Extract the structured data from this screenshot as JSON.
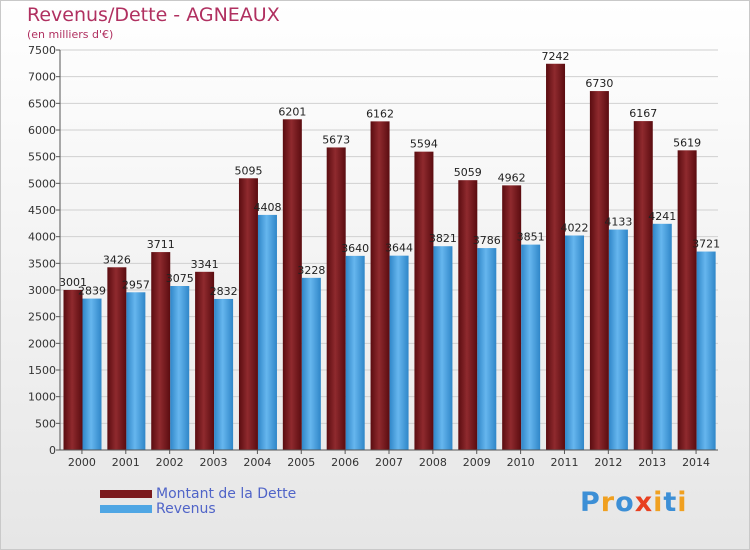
{
  "header": {
    "title": "Revenus/Dette - AGNEAUX",
    "subtitle": "(en milliers d'€)"
  },
  "colors": {
    "dette": "#7b1a1e",
    "revenus": "#4fa6e4",
    "text": "#b03060",
    "legend_text": "#5064c8",
    "grid": "#d0d0d0"
  },
  "legend": {
    "items": [
      {
        "label": "Montant de la Dette",
        "color": "#7b1a1e"
      },
      {
        "label": "Revenus",
        "color": "#4fa6e4"
      }
    ]
  },
  "logo": {
    "text": "Proxiti",
    "letter_colors": [
      "#3c8fd6",
      "#f0a020",
      "#3c8fd6",
      "#e84020",
      "#f0a020",
      "#3c8fd6",
      "#f0a020"
    ]
  },
  "chart_data": {
    "type": "bar",
    "title": "Revenus/Dette - AGNEAUX",
    "subtitle": "(en milliers d'€)",
    "categories": [
      "2000",
      "2001",
      "2002",
      "2003",
      "2004",
      "2005",
      "2006",
      "2007",
      "2008",
      "2009",
      "2010",
      "2011",
      "2012",
      "2013",
      "2014"
    ],
    "series": [
      {
        "name": "Montant de la Dette",
        "color": "#7b1a1e",
        "values": [
          3001,
          3426,
          3711,
          3341,
          5095,
          6201,
          5673,
          6162,
          5594,
          5059,
          4962,
          7242,
          6730,
          6167,
          5619
        ]
      },
      {
        "name": "Revenus",
        "color": "#4fa6e4",
        "values": [
          2839,
          2957,
          3075,
          2832,
          4408,
          3228,
          3640,
          3644,
          3821,
          3786,
          3851,
          4022,
          4133,
          4241,
          3721
        ]
      }
    ],
    "ylim": [
      0,
      7500
    ],
    "yticks": [
      0,
      500,
      1000,
      1500,
      2000,
      2500,
      3000,
      3500,
      4000,
      4500,
      5000,
      5500,
      6000,
      6500,
      7000,
      7500
    ],
    "grid": true,
    "legend_position": "bottom-left"
  }
}
